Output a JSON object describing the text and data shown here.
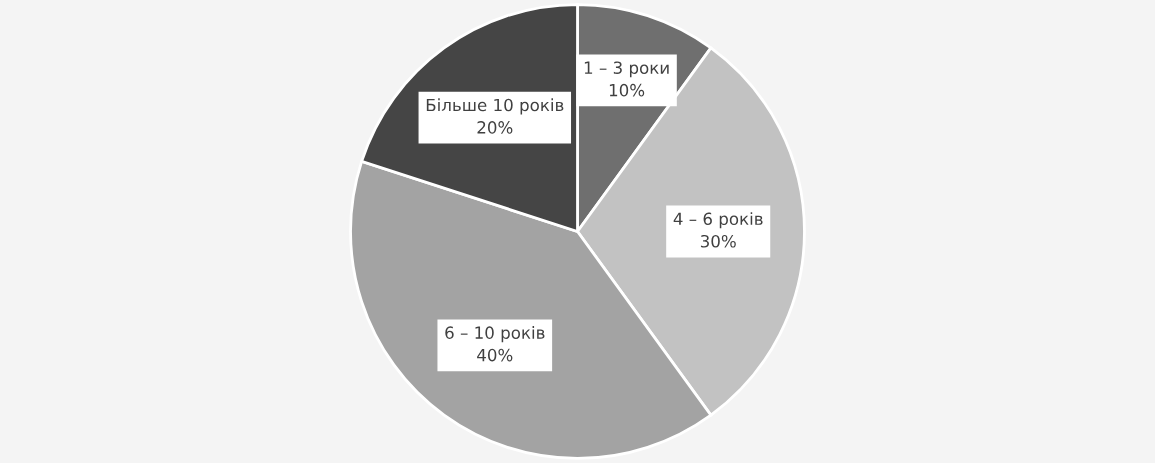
{
  "chart_data": {
    "type": "pie",
    "categories": [
      "1 – 3 роки",
      "4 – 6 років",
      "6 – 10 років",
      "Більше 10 років"
    ],
    "values": [
      10,
      30,
      40,
      20
    ],
    "value_labels": [
      "10%",
      "30%",
      "40%",
      "20%"
    ],
    "colors": [
      "#6f6f6f",
      "#c2c2c2",
      "#a3a3a3",
      "#454545"
    ],
    "legend": false
  }
}
